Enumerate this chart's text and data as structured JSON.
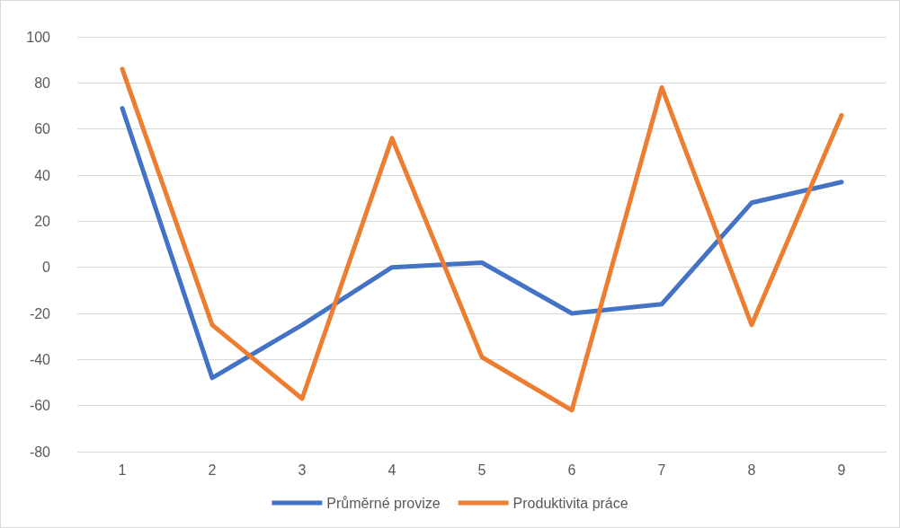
{
  "chart_data": {
    "type": "line",
    "categories": [
      "1",
      "2",
      "3",
      "4",
      "5",
      "6",
      "7",
      "8",
      "9"
    ],
    "series": [
      {
        "name": "Průměrné provize",
        "color": "#4472c4",
        "values": [
          69,
          -48,
          -25,
          0,
          2,
          -20,
          -16,
          28,
          37
        ]
      },
      {
        "name": "Produktivita práce",
        "color": "#ed7d31",
        "values": [
          86,
          -25,
          -57,
          56,
          -39,
          -62,
          78,
          -25,
          66
        ]
      }
    ],
    "ylim": [
      -80,
      100
    ],
    "yticks": [
      -80,
      -60,
      -40,
      -20,
      0,
      20,
      40,
      60,
      80,
      100
    ],
    "grid": "y",
    "legend": "bottom",
    "marker": "none",
    "line_style": "solid"
  }
}
